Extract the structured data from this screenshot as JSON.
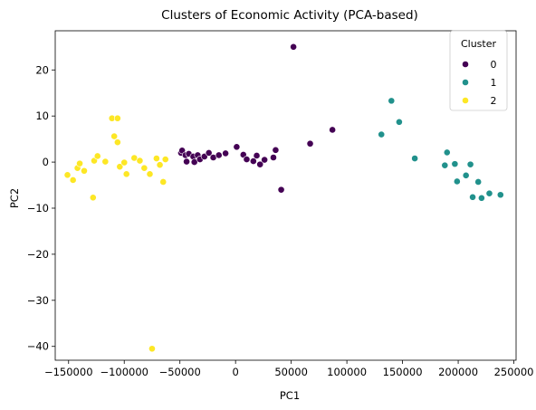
{
  "chart_data": {
    "type": "scatter",
    "title": "Clusters of Economic Activity (PCA-based)",
    "xlabel": "PC1",
    "ylabel": "PC2",
    "xlim": [
      -162000,
      252000
    ],
    "ylim": [
      -43,
      28.5
    ],
    "xticks": [
      -150000,
      -100000,
      -50000,
      0,
      50000,
      100000,
      150000,
      200000,
      250000
    ],
    "xtick_labels": [
      "−150000",
      "−100000",
      "−50000",
      "0",
      "50000",
      "100000",
      "150000",
      "200000",
      "250000"
    ],
    "yticks": [
      -40,
      -30,
      -20,
      -10,
      0,
      10,
      20
    ],
    "ytick_labels": [
      "−40",
      "−30",
      "−20",
      "−10",
      "0",
      "10",
      "20"
    ],
    "grid": false,
    "legend": {
      "title": "Cluster",
      "placement": "top-right"
    },
    "series": [
      {
        "name": "0",
        "color": "#440154",
        "points": [
          [
            -49000,
            2.0
          ],
          [
            -48000,
            2.5
          ],
          [
            -45000,
            1.5
          ],
          [
            -44000,
            0.1
          ],
          [
            -42000,
            1.8
          ],
          [
            -38000,
            1.2
          ],
          [
            -37000,
            0.0
          ],
          [
            -34000,
            1.5
          ],
          [
            -32000,
            0.6
          ],
          [
            -28000,
            1.2
          ],
          [
            -24000,
            2.0
          ],
          [
            -20000,
            1.0
          ],
          [
            -15000,
            1.5
          ],
          [
            -9000,
            1.9
          ],
          [
            1000,
            3.3
          ],
          [
            7000,
            1.6
          ],
          [
            10000,
            0.6
          ],
          [
            16000,
            0.2
          ],
          [
            19000,
            1.4
          ],
          [
            22000,
            -0.5
          ],
          [
            26000,
            0.5
          ],
          [
            34000,
            1.0
          ],
          [
            36000,
            2.6
          ],
          [
            41000,
            -6.0
          ],
          [
            52000,
            25.0
          ],
          [
            67000,
            4.0
          ],
          [
            87000,
            7.0
          ]
        ]
      },
      {
        "name": "1",
        "color": "#21918c",
        "points": [
          [
            131000,
            6.0
          ],
          [
            140000,
            13.3
          ],
          [
            147000,
            8.7
          ],
          [
            161000,
            0.8
          ],
          [
            188000,
            -0.7
          ],
          [
            190000,
            2.1
          ],
          [
            197000,
            -0.4
          ],
          [
            199000,
            -4.2
          ],
          [
            207000,
            -2.9
          ],
          [
            211000,
            -0.5
          ],
          [
            213000,
            -7.6
          ],
          [
            218000,
            -4.3
          ],
          [
            221000,
            -7.8
          ],
          [
            228000,
            -6.8
          ],
          [
            238000,
            -7.1
          ]
        ]
      },
      {
        "name": "2",
        "color": "#fde725",
        "points": [
          [
            -151000,
            -2.8
          ],
          [
            -146000,
            -3.9
          ],
          [
            -142000,
            -1.3
          ],
          [
            -140000,
            -0.3
          ],
          [
            -136000,
            -1.9
          ],
          [
            -128000,
            -7.7
          ],
          [
            -127000,
            0.3
          ],
          [
            -124000,
            1.3
          ],
          [
            -117000,
            0.1
          ],
          [
            -111000,
            9.5
          ],
          [
            -109000,
            5.6
          ],
          [
            -106000,
            9.5
          ],
          [
            -106000,
            4.3
          ],
          [
            -104000,
            -1.0
          ],
          [
            -100000,
            -0.1
          ],
          [
            -98000,
            -2.6
          ],
          [
            -91000,
            0.9
          ],
          [
            -86000,
            0.3
          ],
          [
            -82000,
            -1.3
          ],
          [
            -77000,
            -2.6
          ],
          [
            -75000,
            -40.5
          ],
          [
            -71000,
            0.8
          ],
          [
            -68000,
            -0.6
          ],
          [
            -65000,
            -4.3
          ],
          [
            -63000,
            0.6
          ]
        ]
      }
    ]
  }
}
